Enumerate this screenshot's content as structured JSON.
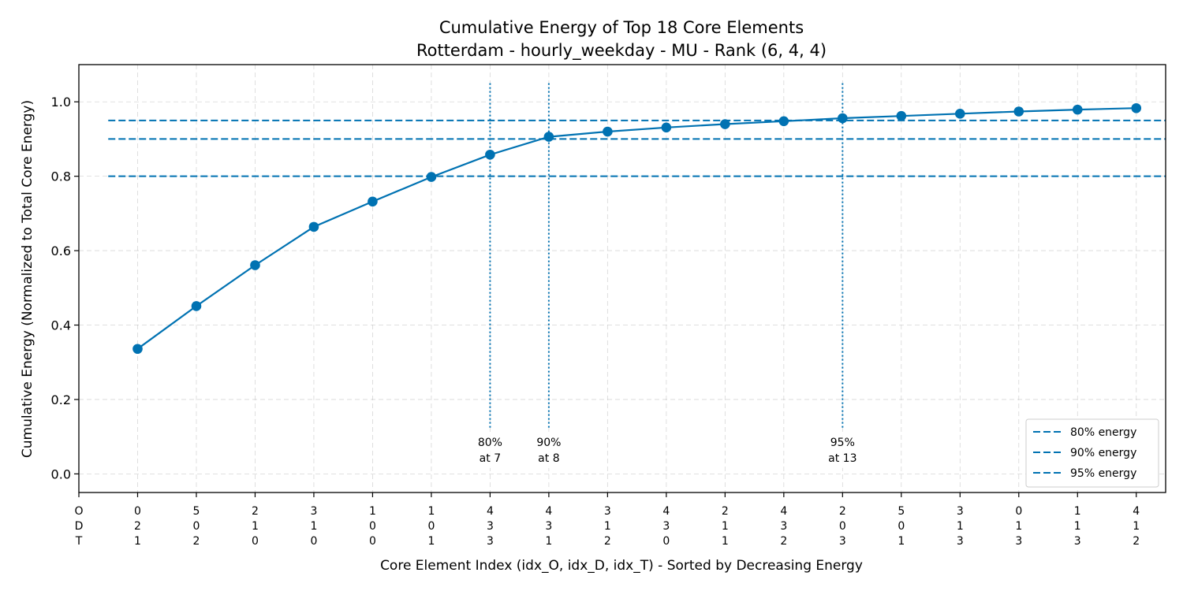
{
  "chart_data": {
    "type": "line",
    "title": "Cumulative Energy of Top 18 Core Elements",
    "subtitle": "Rotterdam - hourly_weekday - MU - Rank (6, 4, 4)",
    "xlabel": "Core Element Index (idx_O, idx_D, idx_T) - Sorted by Decreasing Energy",
    "ylabel": "Cumulative Energy (Normalized to Total Core Energy)",
    "x_row_header": [
      "O",
      "D",
      "T"
    ],
    "categories": [
      [
        "0",
        "2",
        "1"
      ],
      [
        "5",
        "0",
        "2"
      ],
      [
        "2",
        "1",
        "0"
      ],
      [
        "3",
        "1",
        "0"
      ],
      [
        "1",
        "0",
        "0"
      ],
      [
        "1",
        "0",
        "1"
      ],
      [
        "4",
        "3",
        "3"
      ],
      [
        "4",
        "3",
        "1"
      ],
      [
        "3",
        "1",
        "2"
      ],
      [
        "4",
        "3",
        "0"
      ],
      [
        "2",
        "1",
        "1"
      ],
      [
        "4",
        "3",
        "2"
      ],
      [
        "2",
        "0",
        "3"
      ],
      [
        "5",
        "0",
        "1"
      ],
      [
        "3",
        "1",
        "3"
      ],
      [
        "0",
        "1",
        "3"
      ],
      [
        "1",
        "1",
        "3"
      ],
      [
        "4",
        "1",
        "2"
      ]
    ],
    "x": [
      1,
      2,
      3,
      4,
      5,
      6,
      7,
      8,
      9,
      10,
      11,
      12,
      13,
      14,
      15,
      16,
      17,
      18
    ],
    "values": [
      0.336,
      0.451,
      0.561,
      0.664,
      0.732,
      0.798,
      0.858,
      0.906,
      0.92,
      0.931,
      0.94,
      0.948,
      0.956,
      0.962,
      0.968,
      0.974,
      0.979,
      0.983
    ],
    "xlim": [
      0,
      18.5
    ],
    "ylim": [
      -0.05,
      1.1
    ],
    "yticks": [
      0.0,
      0.2,
      0.4,
      0.6,
      0.8,
      1.0
    ],
    "ytick_labels": [
      "0.0",
      "0.2",
      "0.4",
      "0.6",
      "0.8",
      "1.0"
    ],
    "grid": true,
    "line_color": "#0072B2",
    "thresholds": [
      {
        "name": "80% energy",
        "y": 0.8,
        "at": 7,
        "label_line1": "80%",
        "label_line2": "at 7"
      },
      {
        "name": "90% energy",
        "y": 0.9,
        "at": 8,
        "label_line1": "90%",
        "label_line2": "at 8"
      },
      {
        "name": "95% energy",
        "y": 0.95,
        "at": 13,
        "label_line1": "95%",
        "label_line2": "at 13"
      }
    ],
    "legend_position": "lower-right"
  }
}
